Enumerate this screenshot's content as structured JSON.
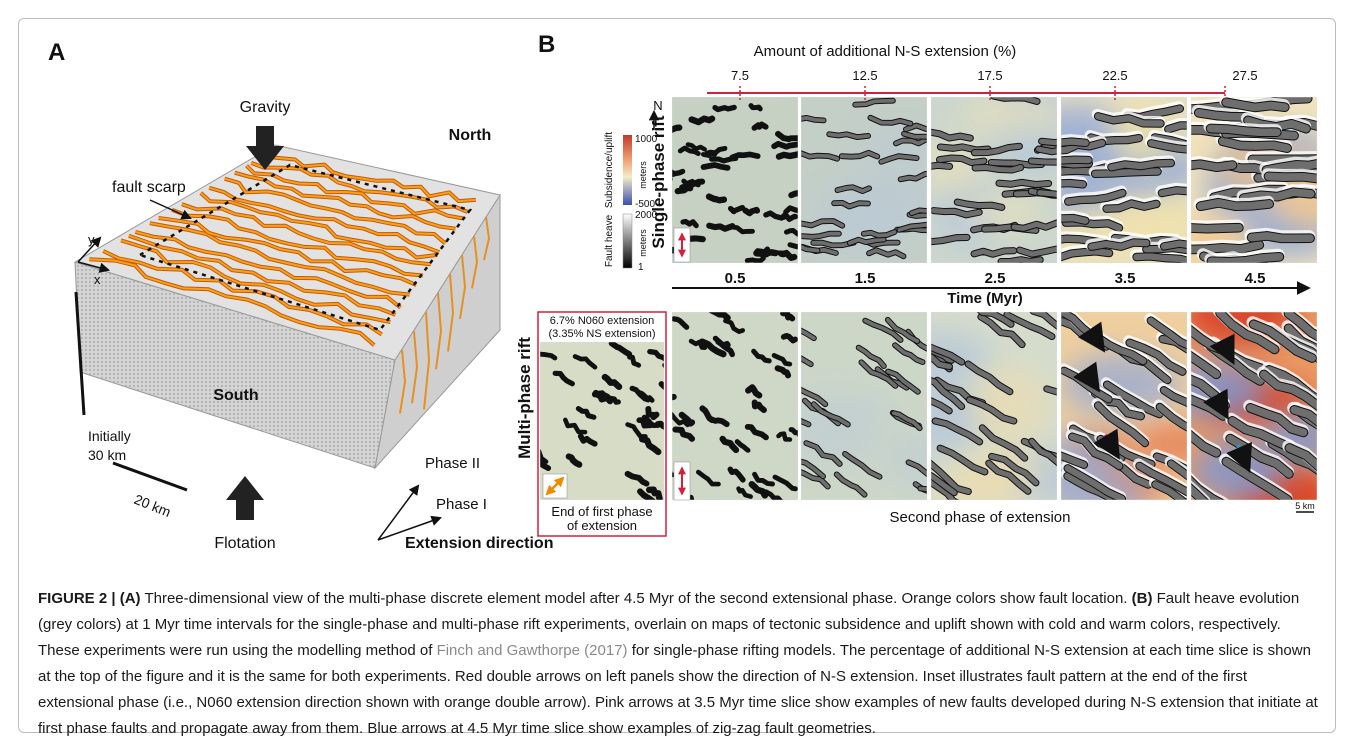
{
  "panel_a": {
    "label": "A",
    "gravity": "Gravity",
    "north": "North",
    "fault_scarp": "fault scarp",
    "axis_y": "y",
    "axis_x": "x",
    "height_label": [
      "Initially",
      "30 km"
    ],
    "south": "South",
    "width_label": "20 km",
    "phase_2": "Phase II",
    "phase_1": "Phase I",
    "flotation": "Flotation",
    "extension_direction": "Extension direction"
  },
  "panel_b": {
    "label": "B",
    "extension_title": "Amount of additional N-S extension (%)",
    "extension_ticks": [
      "7.5",
      "12.5",
      "17.5",
      "22.5",
      "27.5"
    ],
    "north": "N",
    "subsidence_legend": {
      "title": "Subsidence/uplift",
      "max": "1000",
      "unit": "meters",
      "min": "-500"
    },
    "heave_legend": {
      "title": "Fault heave",
      "max": "2000",
      "unit": "meters",
      "min": "1"
    },
    "single_phase": "Single-phase rift",
    "times": [
      "0.5",
      "1.5",
      "2.5",
      "3.5",
      "4.5"
    ],
    "time_axis": "Time (Myr)",
    "multi_phase": "Multi-phase rift",
    "inset": {
      "top": [
        "6.7% N060 extension",
        "(3.35% NS extension)"
      ],
      "bottom": [
        "End of first phase",
        "of extension"
      ]
    },
    "second_phase": "Second phase of extension",
    "scale_bar": "5 km"
  },
  "caption": {
    "label": "FIGURE 2 |",
    "part_a_label": "(A)",
    "part_a_text": "Three-dimensional view of the multi-phase discrete element model after 4.5 Myr of the second extensional phase. Orange colors show fault location.",
    "part_b_label": "(B)",
    "part_b_text": "Fault heave evolution (grey colors) at 1 Myr time intervals for the single-phase and multi-phase rift experiments, overlain on maps of tectonic subsidence and uplift shown with cold and warm colors, respectively. These experiments were run using the modelling method of",
    "reference": "Finch and Gawthorpe (2017)",
    "part_b_rest": "for single-phase rifting models. The percentage of additional N-S extension at each time slice is shown at the top of the figure and it is the same for both experiments. Red double arrows on left panels show the direction of N-S extension. Inset illustrates fault pattern at the end of the first extensional phase (i.e., N060 extension direction shown with orange double arrow). Pink arrows at 3.5 Myr time slice show examples of new faults developed during N-S extension that initiate at first phase faults and propagate away from them. Blue arrows at 4.5 Myr time slice show examples of zig-zag fault geometries."
  }
}
